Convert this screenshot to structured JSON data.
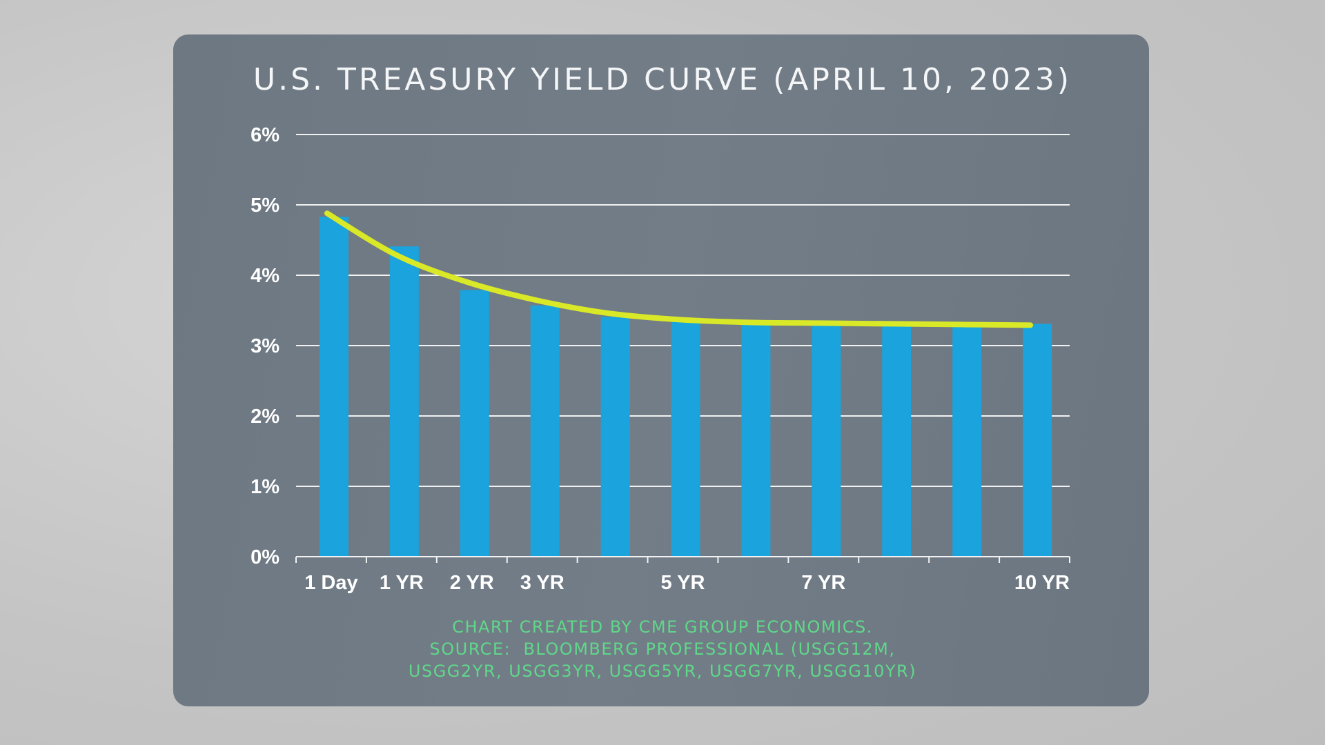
{
  "chart_data": {
    "type": "bar",
    "title": "U.S. TREASURY YIELD CURVE  (APRIL 10, 2023)",
    "xlabel": "",
    "ylabel": "",
    "categories": [
      "1 Day",
      "1 YR",
      "2 YR",
      "3 YR",
      "",
      "5 YR",
      "",
      "7 YR",
      "",
      "",
      "10 YR"
    ],
    "values": [
      4.83,
      4.41,
      3.79,
      3.57,
      3.41,
      3.34,
      3.31,
      3.3,
      3.3,
      3.3,
      3.31
    ],
    "trend_line": [
      4.88,
      4.28,
      3.9,
      3.64,
      3.46,
      3.37,
      3.33,
      3.32,
      3.31,
      3.3,
      3.29
    ],
    "ylim": [
      0,
      6
    ],
    "yticks": [
      "0%",
      "1%",
      "2%",
      "3%",
      "4%",
      "5%",
      "6%"
    ],
    "grid": true,
    "legend": "none",
    "colors": {
      "bars": "#1aa3dc",
      "trend_line": "#d9e827",
      "grid": "#f2f2f2",
      "footer": "#5fd88a"
    }
  },
  "footer": {
    "lines": [
      "CHART CREATED BY CME GROUP ECONOMICS.",
      "SOURCE:  BLOOMBERG PROFESSIONAL (USGG12M,",
      "USGG2YR, USGG3YR, USGG5YR, USGG7YR, USGG10YR)"
    ]
  }
}
